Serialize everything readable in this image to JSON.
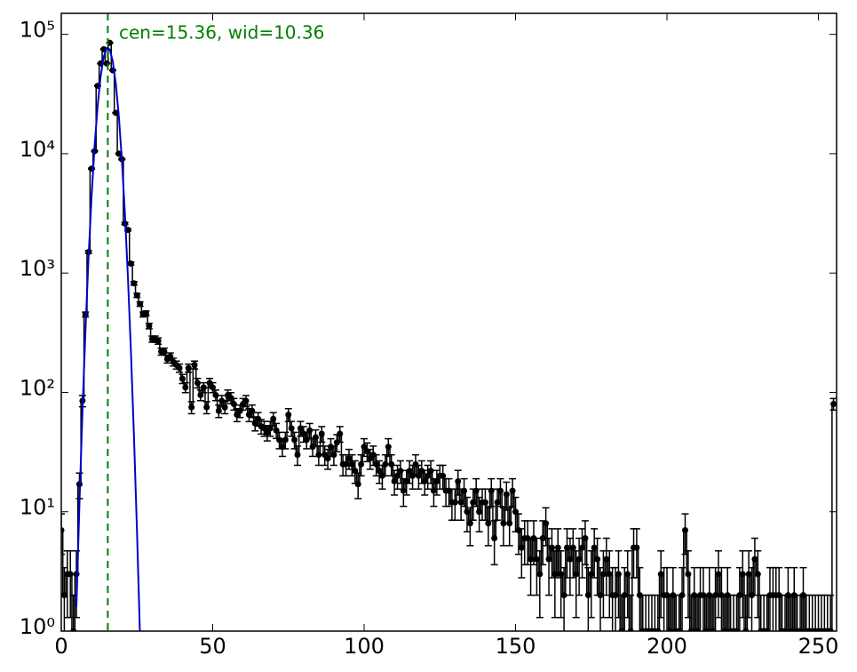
{
  "chart_data": {
    "type": "line",
    "xlim": [
      0,
      256
    ],
    "ylim": [
      1,
      150000
    ],
    "log_y": true,
    "xticks": [
      0,
      50,
      100,
      150,
      200,
      250
    ],
    "yticks": [
      {
        "value": 1,
        "label": "10⁰"
      },
      {
        "value": 10,
        "label": "10¹"
      },
      {
        "value": 100,
        "label": "10²"
      },
      {
        "value": 1000,
        "label": "10³"
      },
      {
        "value": 10000,
        "label": "10⁴"
      },
      {
        "value": 100000,
        "label": "10⁵"
      }
    ],
    "vline": {
      "x": 15.36,
      "color": "#008000"
    },
    "annotation": "cen=15.36, wid=10.36",
    "series": [
      {
        "color": "#000000",
        "x": [
          0,
          1,
          2,
          3,
          4,
          5,
          6,
          7,
          8,
          9,
          10,
          11,
          12,
          13,
          14,
          15,
          16,
          17,
          18,
          19,
          20,
          21,
          22,
          23,
          24,
          25,
          26,
          27,
          28,
          29,
          30,
          31,
          32,
          33,
          34,
          35,
          36,
          37,
          38,
          39,
          40,
          41,
          42,
          43,
          44,
          45,
          46,
          47,
          48,
          49,
          50,
          51,
          52,
          53,
          54,
          55,
          56,
          57,
          58,
          59,
          60,
          61,
          62,
          63,
          64,
          65,
          66,
          67,
          68,
          69,
          70,
          71,
          72,
          73,
          74,
          75,
          76,
          77,
          78,
          79,
          80,
          81,
          82,
          83,
          84,
          85,
          86,
          87,
          88,
          89,
          90,
          91,
          92,
          93,
          94,
          95,
          96,
          97,
          98,
          99,
          100,
          101,
          102,
          103,
          104,
          105,
          106,
          107,
          108,
          109,
          110,
          111,
          112,
          113,
          114,
          115,
          116,
          117,
          118,
          119,
          120,
          121,
          122,
          123,
          124,
          125,
          126,
          127,
          128,
          129,
          130,
          131,
          132,
          133,
          134,
          135,
          136,
          137,
          138,
          139,
          140,
          141,
          142,
          143,
          144,
          145,
          146,
          147,
          148,
          149,
          150,
          151,
          152,
          153,
          154,
          155,
          156,
          157,
          158,
          159,
          160,
          161,
          162,
          163,
          164,
          165,
          166,
          167,
          168,
          169,
          170,
          171,
          172,
          173,
          174,
          175,
          176,
          177,
          178,
          179,
          180,
          181,
          182,
          183,
          184,
          185,
          186,
          187,
          188,
          189,
          190,
          191,
          192,
          193,
          194,
          195,
          196,
          197,
          198,
          199,
          200,
          201,
          202,
          203,
          204,
          205,
          206,
          207,
          208,
          209,
          210,
          211,
          212,
          213,
          214,
          215,
          216,
          217,
          218,
          219,
          220,
          221,
          222,
          223,
          224,
          225,
          226,
          227,
          228,
          229,
          230,
          231,
          232,
          233,
          234,
          235,
          236,
          237,
          238,
          239,
          240,
          241,
          242,
          243,
          244,
          245,
          246,
          247,
          248,
          249,
          250,
          251,
          252,
          253,
          254,
          255
        ],
        "values": [
          7,
          2,
          3,
          3,
          1,
          3,
          17,
          85,
          450,
          1500,
          7500,
          10500,
          37000,
          57000,
          75000,
          57000,
          85000,
          50000,
          22000,
          10000,
          9000,
          2600,
          2300,
          1200,
          820,
          650,
          550,
          450,
          460,
          360,
          280,
          280,
          270,
          220,
          220,
          190,
          200,
          180,
          170,
          160,
          130,
          110,
          160,
          75,
          170,
          120,
          95,
          110,
          75,
          120,
          110,
          95,
          70,
          85,
          75,
          95,
          90,
          80,
          65,
          70,
          80,
          85,
          65,
          70,
          55,
          60,
          52,
          50,
          46,
          50,
          60,
          48,
          40,
          35,
          40,
          65,
          50,
          40,
          30,
          50,
          45,
          40,
          48,
          35,
          42,
          30,
          45,
          30,
          28,
          35,
          30,
          38,
          45,
          25,
          25,
          28,
          25,
          22,
          17,
          25,
          35,
          32,
          28,
          30,
          25,
          22,
          20,
          25,
          35,
          25,
          18,
          20,
          22,
          15,
          18,
          22,
          20,
          25,
          20,
          22,
          18,
          20,
          22,
          15,
          18,
          20,
          20,
          15,
          15,
          12,
          12,
          18,
          12,
          15,
          10,
          8,
          12,
          15,
          10,
          12,
          12,
          8,
          15,
          6,
          12,
          15,
          8,
          14,
          8,
          15,
          10,
          7,
          5,
          6,
          6,
          4,
          6,
          4,
          3,
          6,
          8,
          4,
          5,
          3,
          5,
          3,
          2,
          5,
          4,
          5,
          3,
          4,
          5,
          6,
          2,
          3,
          5,
          4,
          2,
          3,
          4,
          3,
          2,
          2,
          3,
          1,
          2,
          3,
          1,
          5,
          5,
          2,
          1,
          1,
          1,
          1,
          1,
          1,
          3,
          2,
          2,
          1,
          2,
          1,
          1,
          2,
          7,
          3,
          1,
          2,
          1,
          2,
          2,
          1,
          2,
          1,
          2,
          3,
          2,
          1,
          2,
          1,
          1,
          1,
          2,
          3,
          1,
          3,
          2,
          4,
          3,
          1,
          1,
          1,
          2,
          2,
          2,
          2,
          1,
          1,
          2,
          1,
          2,
          1,
          1,
          2,
          1,
          1,
          1,
          1,
          1,
          1,
          1,
          1,
          1,
          80
        ],
        "errors": [
          2.6,
          1.4,
          1.7,
          1.7,
          1,
          1.7,
          4.1,
          9.2,
          21.2,
          39,
          87,
          102,
          192,
          239,
          274,
          239,
          292,
          224,
          148,
          100,
          95,
          51,
          48,
          34.6,
          28.6,
          25.5,
          23.5,
          21.2,
          21.4,
          19,
          16.7,
          16.7,
          16.4,
          14.8,
          14.8,
          13.8,
          14.1,
          13.4,
          13,
          12.6,
          11.4,
          10.5,
          12.6,
          8.7,
          13,
          11,
          9.7,
          10.5,
          8.7,
          11,
          10.5,
          9.7,
          8.4,
          9.2,
          8.7,
          9.7,
          9.5,
          8.9,
          8.1,
          8.4,
          8.9,
          9.2,
          8.1,
          8.4,
          7.4,
          7.7,
          7.2,
          7.1,
          6.8,
          7.1,
          7.7,
          6.9,
          6.3,
          5.9,
          6.3,
          8.1,
          7.1,
          6.3,
          5.5,
          7.1,
          6.7,
          6.3,
          6.9,
          5.9,
          6.5,
          5.5,
          6.7,
          5.5,
          5.3,
          5.9,
          5.5,
          6.2,
          6.7,
          5,
          5,
          5.3,
          5,
          4.7,
          4.1,
          5,
          5.9,
          5.7,
          5.3,
          5.5,
          5,
          4.7,
          4.5,
          5,
          5.9,
          5,
          4.2,
          4.5,
          4.7,
          3.9,
          4.2,
          4.7,
          4.5,
          5,
          4.5,
          4.7,
          4.2,
          4.5,
          4.7,
          3.9,
          4.2,
          4.5,
          4.5,
          3.9,
          3.9,
          3.5,
          3.5,
          4.2,
          3.5,
          3.9,
          3.2,
          2.8,
          3.5,
          3.9,
          3.2,
          3.5,
          3.5,
          2.8,
          3.9,
          2.4,
          3.5,
          3.9,
          2.8,
          3.7,
          2.8,
          3.9,
          3.2,
          2.6,
          2.2,
          2.4,
          2.4,
          2,
          2.4,
          2,
          1.7,
          2.4,
          2.8,
          2,
          2.2,
          1.7,
          2.2,
          1.7,
          1.4,
          2.2,
          2,
          2.2,
          1.7,
          2,
          2.2,
          2.4,
          1.4,
          1.7,
          2.2,
          2,
          1.4,
          1.7,
          2,
          1.7,
          1.4,
          1.4,
          1.7,
          1,
          1.4,
          1.7,
          1,
          2.2,
          2.2,
          1.4,
          1,
          1,
          1,
          1,
          1,
          1,
          1.7,
          1.4,
          1.4,
          1,
          1.4,
          1,
          1,
          1.4,
          2.6,
          1.7,
          1,
          1.4,
          1,
          1.4,
          1.4,
          1,
          1.4,
          1,
          1.4,
          1.7,
          1.4,
          1,
          1.4,
          1,
          1,
          1,
          1.4,
          1.7,
          1,
          1.7,
          1.4,
          2,
          1.7,
          1,
          1,
          1,
          1.4,
          1.4,
          1.4,
          1.4,
          1,
          1,
          1.4,
          1,
          1.4,
          1,
          1,
          1.4,
          1,
          1,
          1,
          1,
          1,
          1,
          1,
          1,
          1,
          8.9
        ]
      },
      {
        "color": "#0000cc",
        "x": [
          5,
          6,
          7,
          8,
          9,
          10,
          11,
          12,
          13,
          14,
          15,
          16,
          17,
          18,
          19,
          20,
          21,
          22,
          23,
          24,
          25,
          26
        ],
        "values": [
          1.6,
          11.7,
          70,
          335,
          1345,
          4340,
          11560,
          25050,
          44550,
          64750,
          77000,
          74870,
          59500,
          38700,
          20600,
          9000,
          3190,
          930,
          220,
          43,
          6.9,
          0.9
        ]
      }
    ]
  }
}
